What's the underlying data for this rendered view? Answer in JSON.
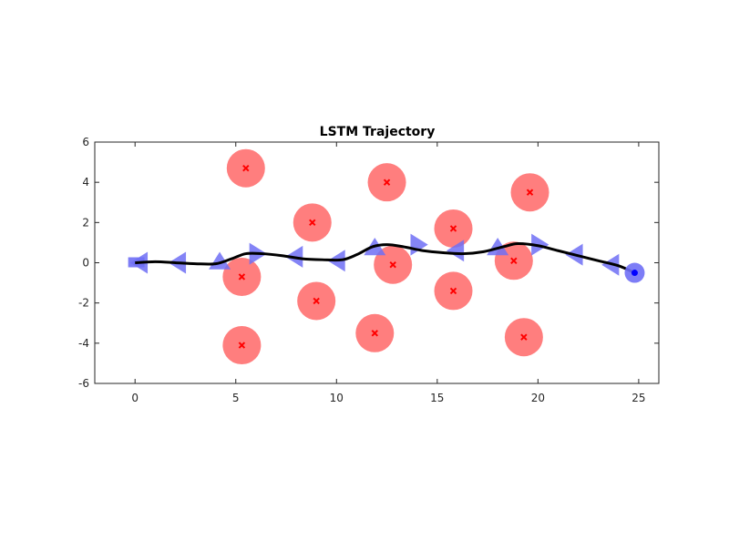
{
  "chart_data": {
    "type": "line",
    "title": "LSTM Trajectory",
    "xlabel": "",
    "ylabel": "",
    "xlim": [
      -2,
      26
    ],
    "ylim": [
      -6,
      6
    ],
    "x_ticks": [
      0,
      5,
      10,
      15,
      20,
      25
    ],
    "y_ticks": [
      -6,
      -4,
      -2,
      0,
      2,
      4,
      6
    ],
    "grid": false,
    "equal_aspect": true,
    "colors": {
      "obstacle": "#ff7b7b",
      "obstacle_center": "#ff0000",
      "robot": "#6f6ff5",
      "goal_center": "#0000ff",
      "trajectory": "#000000",
      "axes": "#262626"
    },
    "obstacles": {
      "radius": 1,
      "centers": [
        {
          "x": 5.5,
          "y": 4.7
        },
        {
          "x": 12.5,
          "y": 4.0
        },
        {
          "x": 19.6,
          "y": 3.5
        },
        {
          "x": 8.8,
          "y": 2.0
        },
        {
          "x": 15.8,
          "y": 1.7
        },
        {
          "x": 5.3,
          "y": -0.7
        },
        {
          "x": 12.8,
          "y": -0.1
        },
        {
          "x": 18.8,
          "y": 0.1
        },
        {
          "x": 9.0,
          "y": -1.9
        },
        {
          "x": 15.8,
          "y": -1.4
        },
        {
          "x": 5.3,
          "y": -4.1
        },
        {
          "x": 11.9,
          "y": -3.5
        },
        {
          "x": 19.3,
          "y": -3.7
        }
      ]
    },
    "trajectory": {
      "x": [
        0,
        1,
        2,
        3,
        4,
        4.8,
        5.5,
        6.3,
        7.3,
        8.3,
        9.3,
        10.3,
        11,
        11.8,
        12.5,
        13.3,
        14.3,
        15.3,
        16.3,
        17.3,
        18.3,
        19,
        20,
        21,
        22,
        23,
        24,
        24.8
      ],
      "y": [
        0,
        0.05,
        0,
        -0.05,
        -0.05,
        0.2,
        0.45,
        0.45,
        0.35,
        0.2,
        0.15,
        0.15,
        0.4,
        0.8,
        0.9,
        0.8,
        0.6,
        0.5,
        0.45,
        0.55,
        0.8,
        0.95,
        0.85,
        0.6,
        0.35,
        0.1,
        -0.15,
        -0.5
      ]
    },
    "robot_poses": [
      {
        "x": 0.2,
        "y": 0.0,
        "shape": "square"
      },
      {
        "x": 0.3,
        "y": 0.0,
        "shape": "tri-left"
      },
      {
        "x": 2.2,
        "y": 0.0,
        "shape": "tri-left"
      },
      {
        "x": 4.2,
        "y": 0.0,
        "shape": "tri-up"
      },
      {
        "x": 6.0,
        "y": 0.45,
        "shape": "tri-right"
      },
      {
        "x": 8.0,
        "y": 0.3,
        "shape": "tri-left"
      },
      {
        "x": 10.1,
        "y": 0.1,
        "shape": "tri-left"
      },
      {
        "x": 11.9,
        "y": 0.7,
        "shape": "tri-up"
      },
      {
        "x": 14.0,
        "y": 0.9,
        "shape": "tri-right"
      },
      {
        "x": 16.0,
        "y": 0.6,
        "shape": "tri-left"
      },
      {
        "x": 18.0,
        "y": 0.7,
        "shape": "tri-up"
      },
      {
        "x": 20.0,
        "y": 0.9,
        "shape": "tri-right"
      },
      {
        "x": 21.9,
        "y": 0.4,
        "shape": "tri-left"
      },
      {
        "x": 23.7,
        "y": -0.1,
        "shape": "tri-left"
      }
    ],
    "goal": {
      "x": 24.8,
      "y": -0.5
    }
  }
}
